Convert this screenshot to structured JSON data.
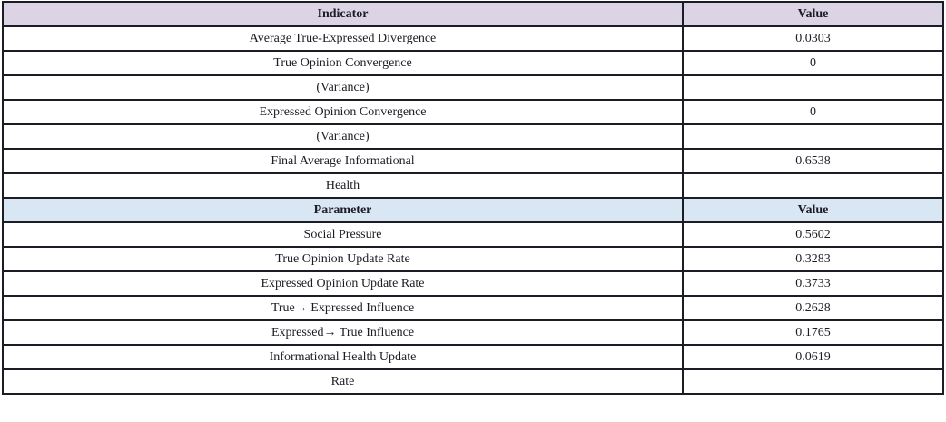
{
  "table": {
    "colors": {
      "indicator_header_bg": "#dcd3e4",
      "parameter_header_bg": "#d9e7f5",
      "border": "#1c1c24"
    },
    "indicator_section": {
      "header": {
        "col1": "Indicator",
        "col2": "Value"
      },
      "rows": [
        {
          "label": "Average True-Expressed Divergence",
          "value": "0.0303"
        },
        {
          "label": "True Opinion Convergence",
          "value": "0"
        },
        {
          "label": "(Variance)",
          "value": ""
        },
        {
          "label": "Expressed Opinion Convergence",
          "value": "0"
        },
        {
          "label": "(Variance)",
          "value": ""
        },
        {
          "label": "Final Average Informational",
          "value": "0.6538"
        },
        {
          "label": "Health",
          "value": ""
        }
      ]
    },
    "parameter_section": {
      "header": {
        "col1": "Parameter",
        "col2": "Value"
      },
      "rows": [
        {
          "label": "Social Pressure",
          "value": "0.5602"
        },
        {
          "label": "True Opinion Update Rate",
          "value": "0.3283"
        },
        {
          "label": "Expressed Opinion Update Rate",
          "value": "0.3733"
        },
        {
          "label": "True→ Expressed Influence",
          "value": "0.2628"
        },
        {
          "label": "Expressed→ True Influence",
          "value": "0.1765"
        },
        {
          "label": "Informational Health Update",
          "value": "0.0619"
        },
        {
          "label": "Rate",
          "value": ""
        }
      ]
    }
  }
}
